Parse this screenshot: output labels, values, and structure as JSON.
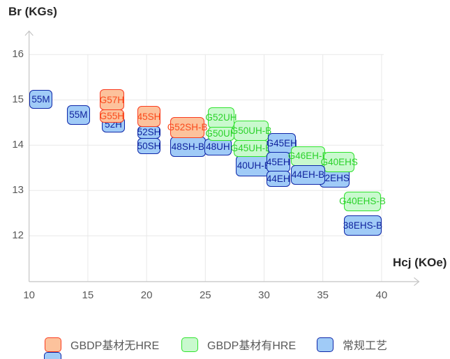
{
  "chart_data": {
    "type": "scatter",
    "subtype": "labeled-range-boxes",
    "x_axis": {
      "label": "Hcj (KOe)",
      "ticks": [
        10,
        15,
        20,
        25,
        30,
        35,
        40
      ],
      "range": [
        10,
        43.3
      ]
    },
    "y_axis": {
      "label": "Br (KGs)",
      "ticks": [
        12,
        13,
        14,
        15,
        16
      ],
      "range": [
        11.2,
        16.6
      ]
    },
    "grid": true,
    "legend_position": "bottom",
    "points": [
      {
        "label": "55M",
        "series": "blue",
        "hcj": [
          10.0,
          12.0
        ],
        "br": [
          14.8,
          15.22
        ]
      },
      {
        "label": "55M",
        "series": "blue",
        "hcj": [
          13.2,
          15.2
        ],
        "br": [
          14.45,
          14.88
        ]
      },
      {
        "label": "52H",
        "series": "blue",
        "hcj": [
          16.2,
          18.15
        ],
        "br": [
          14.28,
          14.62
        ]
      },
      {
        "label": "G57H",
        "series": "orange",
        "hcj": [
          16.0,
          18.1
        ],
        "br": [
          14.77,
          15.23
        ]
      },
      {
        "label": "G55H",
        "series": "orange",
        "hcj": [
          16.0,
          18.1
        ],
        "br": [
          14.5,
          14.79
        ]
      },
      {
        "label": "52SH",
        "series": "blue",
        "hcj": [
          19.2,
          21.2
        ],
        "br": [
          14.14,
          14.42
        ]
      },
      {
        "label": "50SH",
        "series": "blue",
        "hcj": [
          19.2,
          21.2
        ],
        "br": [
          13.8,
          14.16
        ]
      },
      {
        "label": "45SH",
        "series": "orange",
        "hcj": [
          19.2,
          21.2
        ],
        "br": [
          14.4,
          14.86
        ]
      },
      {
        "label": "48SH-B",
        "series": "blue",
        "hcj": [
          22.0,
          25.05
        ],
        "br": [
          13.74,
          14.19
        ]
      },
      {
        "label": "G52SH-B",
        "series": "orange",
        "hcj": [
          22.0,
          24.95
        ],
        "br": [
          14.16,
          14.62
        ]
      },
      {
        "label": "48UH",
        "series": "blue",
        "hcj": [
          24.9,
          27.25
        ],
        "br": [
          13.77,
          14.14
        ]
      },
      {
        "label": "G52UH",
        "series": "green",
        "hcj": [
          25.2,
          27.5
        ],
        "br": [
          14.37,
          14.84
        ]
      },
      {
        "label": "G50UH",
        "series": "green",
        "hcj": [
          25.2,
          27.5
        ],
        "br": [
          14.1,
          14.4
        ]
      },
      {
        "label": "40UH-B",
        "series": "blue",
        "hcj": [
          27.6,
          30.65
        ],
        "br": [
          13.31,
          13.78
        ]
      },
      {
        "label": "G50UH-B",
        "series": "green",
        "hcj": [
          27.4,
          30.4
        ],
        "br": [
          14.09,
          14.54
        ]
      },
      {
        "label": "G45UH-B",
        "series": "green",
        "hcj": [
          27.4,
          30.4
        ],
        "br": [
          13.75,
          14.11
        ]
      },
      {
        "label": "G45EH",
        "series": "blue",
        "hcj": [
          30.3,
          32.7
        ],
        "br": [
          13.82,
          14.27
        ]
      },
      {
        "label": "45EH",
        "series": "blue",
        "hcj": [
          30.2,
          32.2
        ],
        "br": [
          13.41,
          13.85
        ]
      },
      {
        "label": "44EH",
        "series": "blue",
        "hcj": [
          30.2,
          32.2
        ],
        "br": [
          13.08,
          13.44
        ]
      },
      {
        "label": "G46EH-B",
        "series": "green",
        "hcj": [
          32.3,
          35.2
        ],
        "br": [
          13.54,
          13.98
        ]
      },
      {
        "label": "42EHS",
        "series": "blue",
        "hcj": [
          34.7,
          37.3
        ],
        "br": [
          13.07,
          13.48
        ]
      },
      {
        "label": "G40EHS",
        "series": "green",
        "hcj": [
          35.1,
          37.7
        ],
        "br": [
          13.41,
          13.85
        ]
      },
      {
        "label": "44EH-B",
        "series": "blue",
        "hcj": [
          32.3,
          35.2
        ],
        "br": [
          13.13,
          13.56
        ]
      },
      {
        "label": "G40EHS-B",
        "series": "green",
        "hcj": [
          36.8,
          39.95
        ],
        "br": [
          12.54,
          12.97
        ]
      },
      {
        "label": "38EHS-B",
        "series": "blue",
        "hcj": [
          36.8,
          40.0
        ],
        "br": [
          12.0,
          12.45
        ]
      }
    ]
  },
  "legend": [
    {
      "label": "GBDP基材无HRE",
      "series": "orange"
    },
    {
      "label": "GBDP基材有HRE",
      "series": "green"
    },
    {
      "label": "常规工艺",
      "series": "blue"
    }
  ],
  "colors": {
    "orange": {
      "fill": "#fcc29c",
      "border": "#fa3b1e",
      "text": "#fa4a1c"
    },
    "green": {
      "fill": "#c9f9ce",
      "border": "#2ee32c",
      "text": "#2bd22b"
    },
    "blue": {
      "fill": "#a0cbf7",
      "border": "#0d26a8",
      "text": "#10239e"
    },
    "gridline": "#e8e8e8",
    "axis": "#c4c4c4",
    "tick_text": "#595959",
    "title_text": "#262626"
  }
}
